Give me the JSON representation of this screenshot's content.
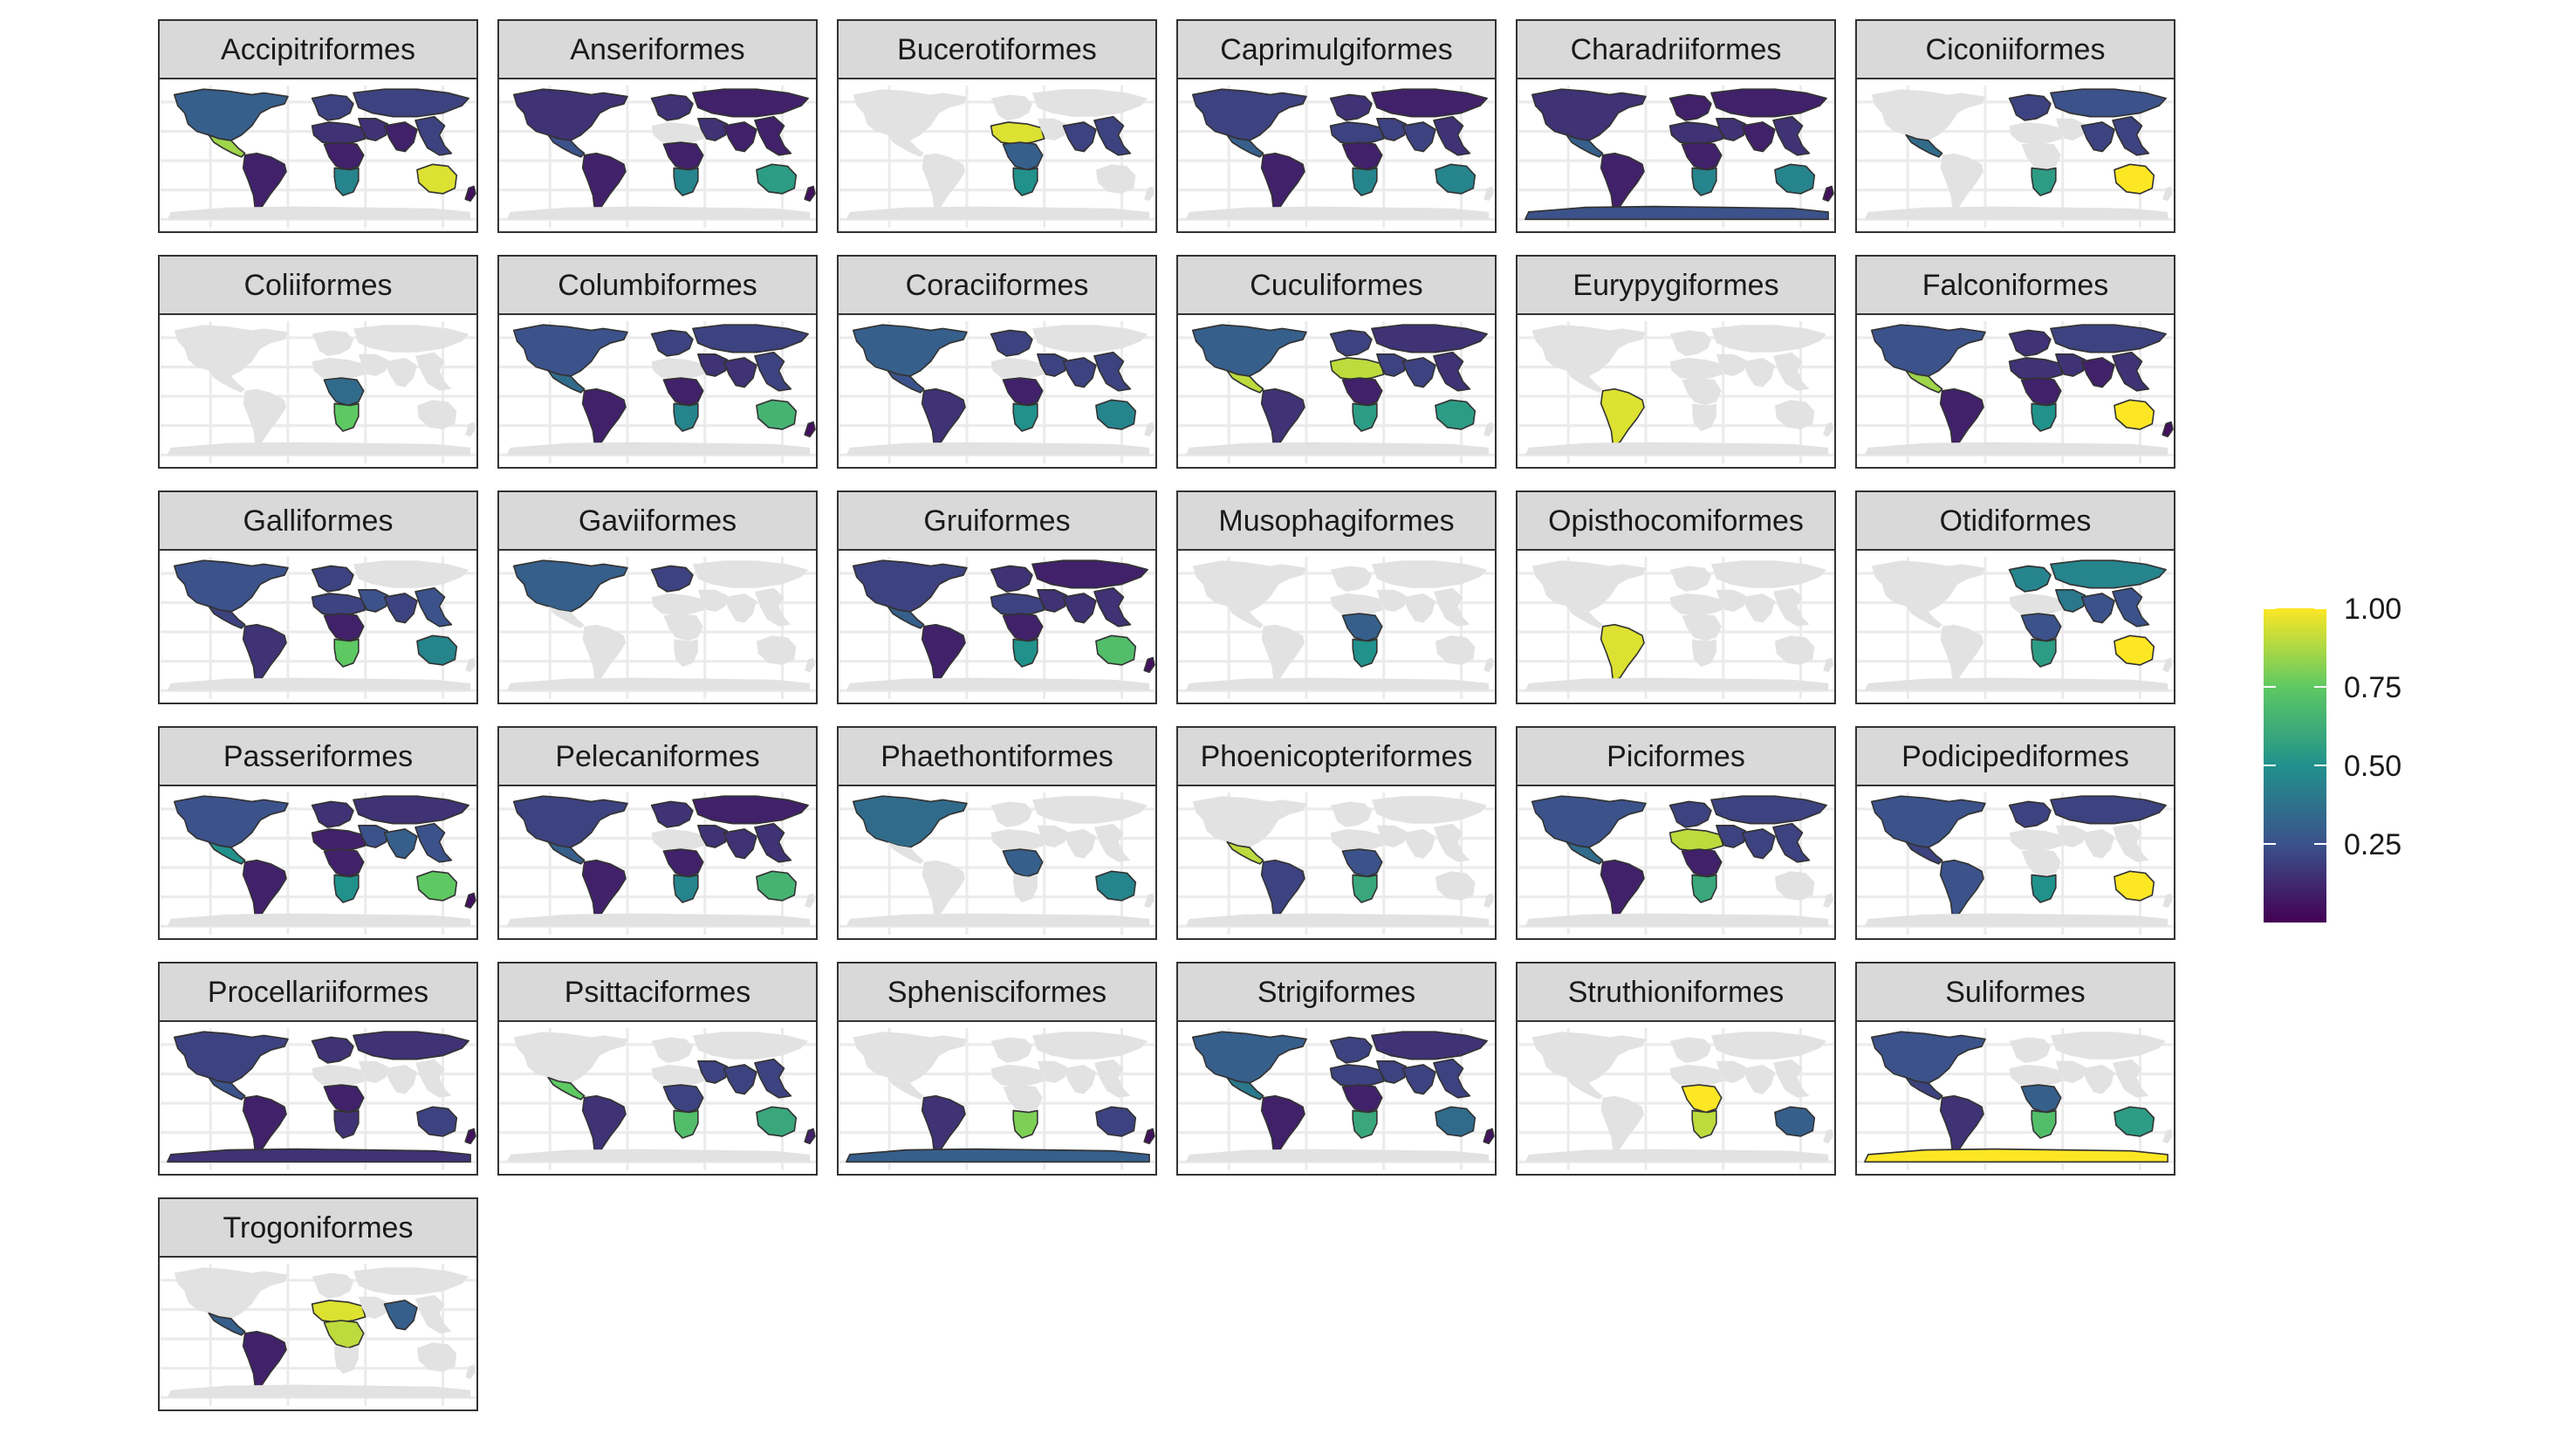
{
  "chart_data": {
    "type": "faceted-choropleth",
    "title": "",
    "xlabel": "",
    "ylabel": "",
    "facet_by": "order",
    "colorscale": {
      "name": "viridis",
      "range": [
        0,
        1
      ],
      "ticks": [
        0.25,
        0.5,
        0.75,
        1.0
      ],
      "tick_labels": [
        "0.25",
        "0.50",
        "0.75",
        "1.00"
      ],
      "stops": [
        "#440154",
        "#3b528b",
        "#21918c",
        "#5ec962",
        "#fde725"
      ]
    },
    "colors": {
      "no_data": "#e2e2e2",
      "grid": "#ebebeb",
      "strip_fill": "#d9d9d9",
      "border": "#333333"
    },
    "regions": [
      "North America",
      "Central America",
      "South America",
      "Europe",
      "North Africa",
      "Central Africa",
      "Southern Africa",
      "Middle East",
      "Northern Asia",
      "South Asia",
      "Southeast Asia",
      "Australia",
      "New Zealand",
      "Antarctica"
    ],
    "panels": [
      {
        "name": "Accipitriformes",
        "values": [
          0.3,
          0.85,
          0.1,
          0.2,
          0.15,
          0.1,
          0.45,
          0.15,
          0.2,
          0.1,
          0.2,
          0.95,
          0.05,
          null
        ]
      },
      {
        "name": "Anseriformes",
        "values": [
          0.15,
          0.25,
          0.1,
          0.15,
          null,
          0.1,
          0.45,
          0.15,
          0.1,
          0.1,
          0.1,
          0.55,
          0.05,
          null
        ]
      },
      {
        "name": "Bucerotiformes",
        "values": [
          null,
          null,
          null,
          null,
          0.95,
          0.3,
          0.5,
          null,
          null,
          0.2,
          0.2,
          null,
          null,
          null
        ]
      },
      {
        "name": "Caprimulgiformes",
        "values": [
          0.2,
          0.3,
          0.1,
          0.15,
          0.2,
          0.1,
          0.45,
          0.2,
          0.1,
          0.2,
          0.15,
          0.45,
          null,
          null
        ]
      },
      {
        "name": "Charadriiformes",
        "values": [
          0.15,
          0.3,
          0.1,
          0.1,
          0.15,
          0.1,
          0.45,
          0.15,
          0.1,
          0.1,
          0.15,
          0.45,
          0.05,
          0.25
        ]
      },
      {
        "name": "Ciconiiformes",
        "values": [
          null,
          0.35,
          null,
          0.2,
          null,
          null,
          0.55,
          null,
          0.25,
          0.2,
          0.2,
          1.0,
          null,
          null
        ]
      },
      {
        "name": "Coliiformes",
        "values": [
          null,
          null,
          null,
          null,
          null,
          0.35,
          0.75,
          null,
          null,
          null,
          null,
          null,
          null,
          null
        ]
      },
      {
        "name": "Columbiformes",
        "values": [
          0.25,
          0.35,
          0.1,
          0.2,
          null,
          0.1,
          0.45,
          0.15,
          0.2,
          0.15,
          0.2,
          0.65,
          0.05,
          null
        ]
      },
      {
        "name": "Coraciiformes",
        "values": [
          0.3,
          0.25,
          0.15,
          0.2,
          null,
          0.1,
          0.5,
          0.2,
          null,
          0.2,
          0.2,
          0.45,
          null,
          null
        ]
      },
      {
        "name": "Cuculiformes",
        "values": [
          0.3,
          0.9,
          0.15,
          0.2,
          0.9,
          0.1,
          0.55,
          0.2,
          0.15,
          0.2,
          0.15,
          0.55,
          null,
          null
        ]
      },
      {
        "name": "Eurypygiformes",
        "values": [
          null,
          null,
          0.95,
          null,
          null,
          null,
          null,
          null,
          null,
          null,
          null,
          null,
          null,
          null
        ]
      },
      {
        "name": "Falconiformes",
        "values": [
          0.25,
          0.85,
          0.1,
          0.15,
          0.15,
          0.1,
          0.5,
          0.15,
          0.2,
          0.1,
          0.15,
          1.0,
          0.05,
          null
        ]
      },
      {
        "name": "Galliformes",
        "values": [
          0.25,
          0.2,
          0.15,
          0.2,
          0.2,
          0.1,
          0.75,
          0.25,
          null,
          0.2,
          0.25,
          0.45,
          null,
          null
        ]
      },
      {
        "name": "Gaviiformes",
        "values": [
          0.3,
          null,
          null,
          0.2,
          null,
          null,
          null,
          null,
          null,
          null,
          null,
          null,
          null,
          null
        ]
      },
      {
        "name": "Gruiformes",
        "values": [
          0.2,
          0.3,
          0.1,
          0.15,
          0.2,
          0.1,
          0.5,
          0.15,
          0.1,
          0.15,
          0.15,
          0.7,
          0.05,
          null
        ]
      },
      {
        "name": "Musophagiformes",
        "values": [
          null,
          null,
          null,
          null,
          null,
          0.3,
          0.5,
          null,
          null,
          null,
          null,
          null,
          null,
          null
        ]
      },
      {
        "name": "Opisthocomiformes",
        "values": [
          null,
          null,
          0.95,
          null,
          null,
          null,
          null,
          null,
          null,
          null,
          null,
          null,
          null,
          null
        ]
      },
      {
        "name": "Otidiformes",
        "values": [
          null,
          null,
          null,
          0.45,
          null,
          0.25,
          0.55,
          0.4,
          0.45,
          0.25,
          0.25,
          1.0,
          null,
          null
        ]
      },
      {
        "name": "Passeriformes",
        "values": [
          0.25,
          0.5,
          0.1,
          0.15,
          0.1,
          0.1,
          0.5,
          0.25,
          0.15,
          0.3,
          0.25,
          0.75,
          0.05,
          null
        ]
      },
      {
        "name": "Pelecaniformes",
        "values": [
          0.2,
          0.3,
          0.1,
          0.15,
          null,
          0.1,
          0.45,
          0.15,
          0.1,
          0.15,
          0.15,
          0.65,
          null,
          null
        ]
      },
      {
        "name": "Phaethontiformes",
        "values": [
          0.35,
          null,
          null,
          null,
          null,
          0.3,
          null,
          null,
          null,
          null,
          null,
          0.45,
          null,
          null
        ]
      },
      {
        "name": "Phoenicopteriformes",
        "values": [
          null,
          0.9,
          0.2,
          null,
          null,
          0.25,
          0.6,
          null,
          null,
          null,
          null,
          null,
          null,
          null
        ]
      },
      {
        "name": "Piciformes",
        "values": [
          0.25,
          0.35,
          0.1,
          0.2,
          0.9,
          0.1,
          0.6,
          0.2,
          0.2,
          0.2,
          0.2,
          null,
          null,
          null
        ]
      },
      {
        "name": "Podicipediformes",
        "values": [
          0.25,
          0.2,
          0.25,
          0.2,
          null,
          null,
          0.5,
          null,
          0.2,
          null,
          null,
          1.0,
          null,
          null
        ]
      },
      {
        "name": "Procellariiformes",
        "values": [
          0.2,
          0.25,
          0.1,
          0.15,
          null,
          0.1,
          0.15,
          null,
          0.15,
          null,
          null,
          0.2,
          0.05,
          0.15
        ]
      },
      {
        "name": "Psittaciformes",
        "values": [
          null,
          0.75,
          0.15,
          null,
          null,
          0.2,
          0.7,
          0.2,
          null,
          0.2,
          0.2,
          0.6,
          0.1,
          null
        ]
      },
      {
        "name": "Sphenisciformes",
        "values": [
          null,
          null,
          0.15,
          null,
          null,
          null,
          0.8,
          null,
          null,
          null,
          null,
          0.2,
          0.05,
          0.3
        ]
      },
      {
        "name": "Strigiformes",
        "values": [
          0.3,
          0.4,
          0.1,
          0.2,
          0.2,
          0.1,
          0.6,
          0.2,
          0.15,
          0.2,
          0.2,
          0.35,
          0.05,
          null
        ]
      },
      {
        "name": "Struthioniformes",
        "values": [
          null,
          null,
          null,
          null,
          null,
          1.0,
          0.9,
          null,
          null,
          null,
          null,
          0.3,
          null,
          null
        ]
      },
      {
        "name": "Suliformes",
        "values": [
          0.25,
          0.2,
          0.15,
          null,
          null,
          0.3,
          0.7,
          null,
          null,
          null,
          null,
          0.55,
          null,
          1.0
        ]
      },
      {
        "name": "Trogoniformes",
        "values": [
          null,
          0.3,
          0.1,
          null,
          0.95,
          0.9,
          null,
          null,
          null,
          0.3,
          null,
          null,
          null,
          null
        ]
      }
    ]
  }
}
